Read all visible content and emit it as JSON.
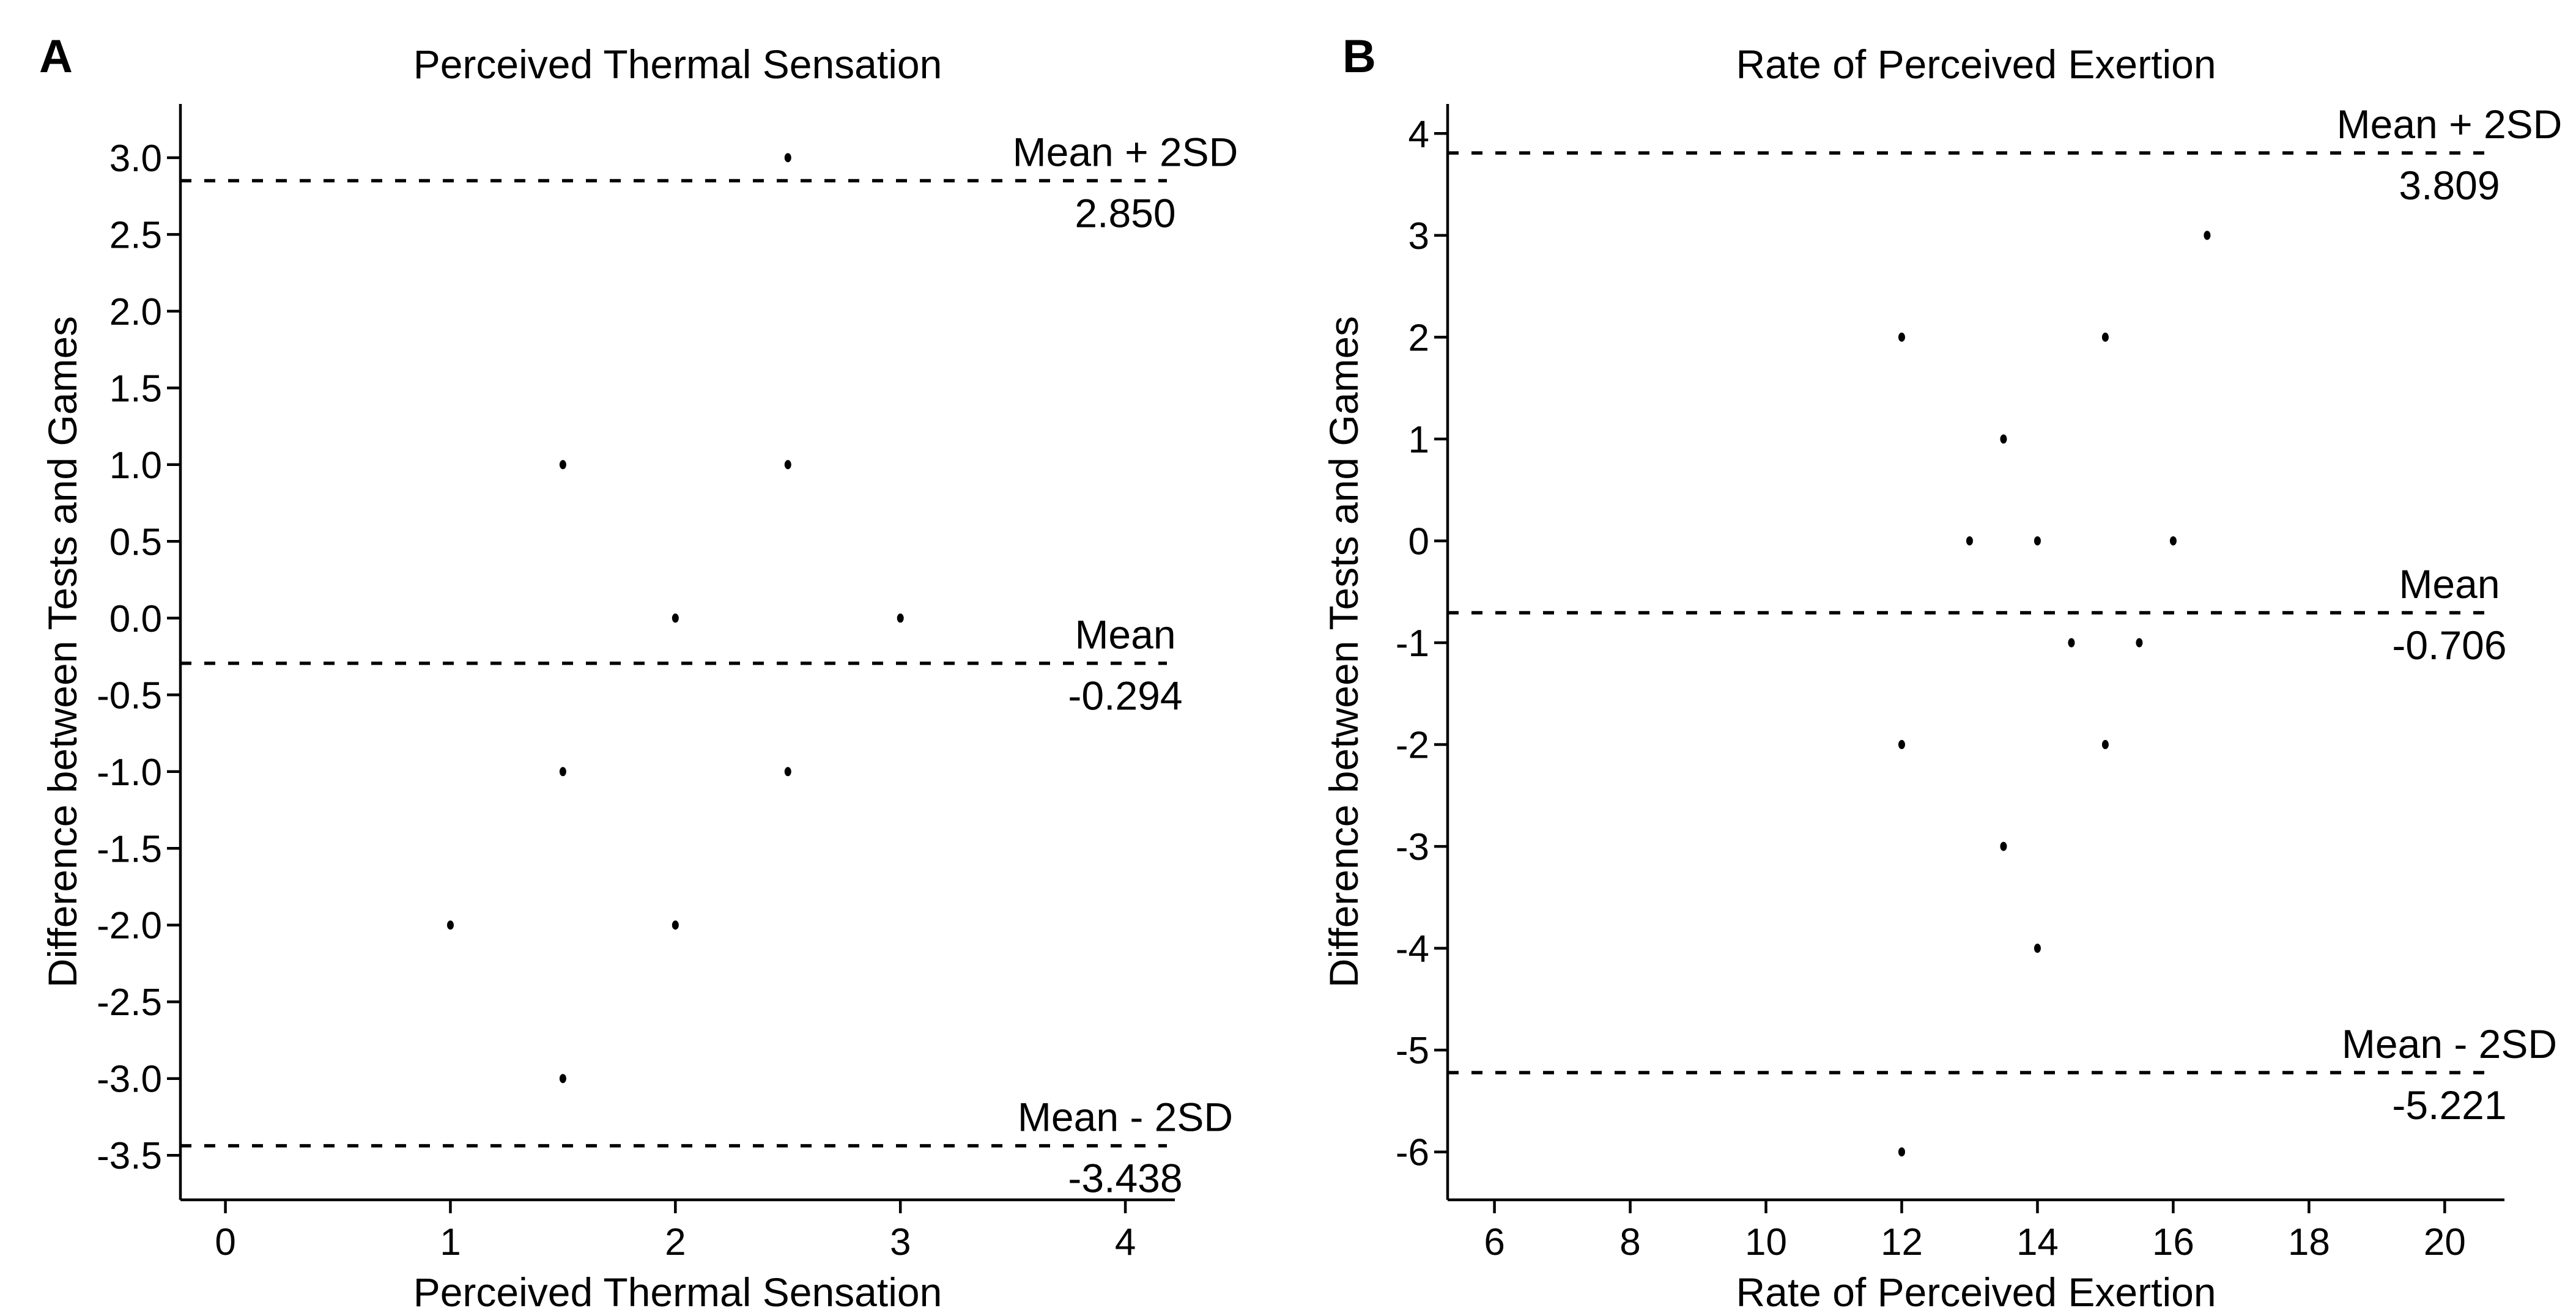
{
  "colors": {
    "background": "#ffffff",
    "ink": "#000000"
  },
  "chart_data": [
    {
      "type": "scatter",
      "panel_label": "A",
      "title": "Perceived Thermal Sensation",
      "xlabel": "Perceived Thermal Sensation",
      "ylabel": "Difference between Tests and Games",
      "xlim": [
        -0.2,
        4.22
      ],
      "ylim": [
        -3.79,
        3.35
      ],
      "xticks": [
        "0",
        "1",
        "2",
        "3",
        "4"
      ],
      "yticks": [
        "3.0",
        "2.5",
        "2.0",
        "1.5",
        "1.0",
        "0.5",
        "0.0",
        "-0.5",
        "-1.0",
        "-1.5",
        "-2.0",
        "-2.5",
        "-3.0",
        "-3.5"
      ],
      "grid": false,
      "legend": "none",
      "marker": "dot",
      "points": [
        [
          2.5,
          3.0
        ],
        [
          1.5,
          1.0
        ],
        [
          2.5,
          1.0
        ],
        [
          2.0,
          0.0
        ],
        [
          3.0,
          0.0
        ],
        [
          1.5,
          -1.0
        ],
        [
          2.5,
          -1.0
        ],
        [
          1.0,
          -2.0
        ],
        [
          2.0,
          -2.0
        ],
        [
          1.5,
          -3.0
        ]
      ],
      "reference_lines": [
        {
          "label": "Mean + 2SD",
          "value": 2.85,
          "value_text": "2.850",
          "style": "dashed"
        },
        {
          "label": "Mean",
          "value": -0.294,
          "value_text": "-0.294",
          "style": "dashed"
        },
        {
          "label": "Mean - 2SD",
          "value": -3.438,
          "value_text": "-3.438",
          "style": "dashed"
        }
      ]
    },
    {
      "type": "scatter",
      "panel_label": "B",
      "title": "Rate of Perceived Exertion",
      "xlabel": "Rate of Perceived Exertion",
      "ylabel": "Difference between Tests and Games",
      "xlim": [
        5.31,
        20.88
      ],
      "ylim": [
        -6.47,
        4.29
      ],
      "xticks": [
        "6",
        "8",
        "10",
        "12",
        "14",
        "16",
        "18",
        "20"
      ],
      "yticks": [
        "4",
        "3",
        "2",
        "1",
        "0",
        "-1",
        "-2",
        "-3",
        "-4",
        "-5",
        "-6"
      ],
      "grid": false,
      "legend": "none",
      "marker": "dot",
      "points": [
        [
          16.5,
          3.0
        ],
        [
          12.0,
          2.0
        ],
        [
          15.0,
          2.0
        ],
        [
          13.5,
          1.0
        ],
        [
          13.0,
          0.0
        ],
        [
          14.0,
          0.0
        ],
        [
          16.0,
          0.0
        ],
        [
          14.5,
          -1.0
        ],
        [
          15.5,
          -1.0
        ],
        [
          12.0,
          -2.0
        ],
        [
          15.0,
          -2.0
        ],
        [
          13.5,
          -3.0
        ],
        [
          14.0,
          -4.0
        ],
        [
          12.0,
          -6.0
        ]
      ],
      "reference_lines": [
        {
          "label": "Mean + 2SD",
          "value": 3.809,
          "value_text": "3.809",
          "style": "dashed"
        },
        {
          "label": "Mean",
          "value": -0.706,
          "value_text": "-0.706",
          "style": "dashed"
        },
        {
          "label": "Mean - 2SD",
          "value": -5.221,
          "value_text": "-5.221",
          "style": "dashed"
        }
      ]
    }
  ]
}
